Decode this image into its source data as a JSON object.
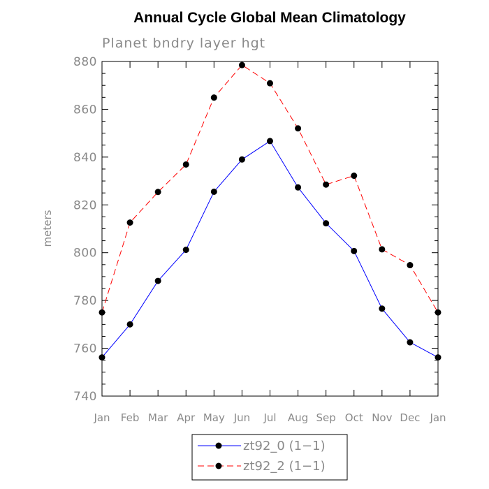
{
  "chart_data": {
    "type": "line",
    "title": "Annual Cycle Global Mean Climatology",
    "subtitle": "Planet bndry layer hgt",
    "xlabel": "",
    "ylabel": "meters",
    "categories": [
      "Jan",
      "Feb",
      "Mar",
      "Apr",
      "May",
      "Jun",
      "Jul",
      "Aug",
      "Sep",
      "Oct",
      "Nov",
      "Dec",
      "Jan"
    ],
    "ylim": [
      740,
      880
    ],
    "yticks": [
      740,
      760,
      780,
      800,
      820,
      840,
      860,
      880
    ],
    "grid": false,
    "legend_position": "bottom-center",
    "series": [
      {
        "name": "zt92_0 (1−1)",
        "color": "#0000ff",
        "line_style": "solid",
        "marker": "filled-circle",
        "values": [
          756.2,
          770.0,
          788.2,
          801.2,
          825.5,
          839.0,
          846.7,
          827.3,
          812.3,
          800.7,
          776.6,
          762.5,
          756.2
        ]
      },
      {
        "name": "zt92_2 (1−1)",
        "color": "#ff0000",
        "line_style": "dashed",
        "marker": "filled-circle",
        "values": [
          775.0,
          812.6,
          825.4,
          836.9,
          864.9,
          878.5,
          870.9,
          852.0,
          828.5,
          832.2,
          801.4,
          794.8,
          775.0
        ]
      }
    ]
  }
}
